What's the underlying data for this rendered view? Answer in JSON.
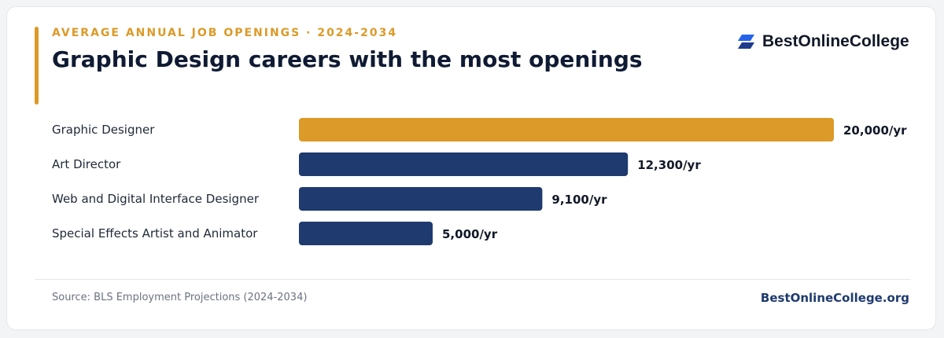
{
  "header": {
    "eyebrow": "AVERAGE ANNUAL JOB OPENINGS · 2024-2034",
    "title": "Graphic Design careers with the most openings",
    "brand_name": "BestOnlineCollege"
  },
  "footer": {
    "source": "Source: BLS Employment Projections (2024-2034)",
    "site": "BestOnlineCollege.org"
  },
  "colors": {
    "accent": "#dc9a28",
    "navy": "#1e3a6e",
    "brand_blue": "#2563eb"
  },
  "icons": {
    "brand_logo": "bestonlinecollege-logo-icon"
  },
  "chart_data": {
    "type": "bar",
    "orientation": "horizontal",
    "categories": [
      "Graphic Designer",
      "Art Director",
      "Web and Digital Interface Designer",
      "Special Effects Artist and Animator"
    ],
    "values": [
      20000,
      12300,
      9100,
      5000
    ],
    "value_labels": [
      "20,000/yr",
      "12,300/yr",
      "9,100/yr",
      "5,000/yr"
    ],
    "bar_colors": [
      "#dc9a28",
      "#1e3a6e",
      "#1e3a6e",
      "#1e3a6e"
    ],
    "xlim": [
      0,
      20000
    ],
    "grid": false,
    "legend": "none"
  }
}
